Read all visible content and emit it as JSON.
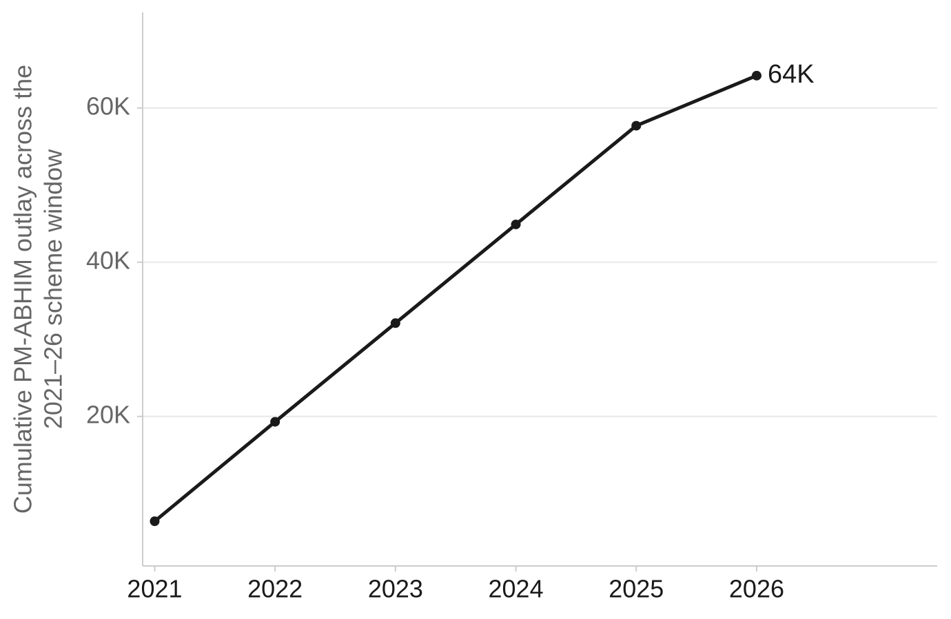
{
  "chart_data": {
    "type": "line",
    "y_label": [
      "Cumulative PM-ABHIM outlay across the",
      "2021–26 scheme window"
    ],
    "x": [
      2021,
      2022,
      2023,
      2024,
      2025,
      2026
    ],
    "series": [
      {
        "color": "#1a1a1a",
        "values": [
          6400,
          19300,
          32100,
          44900,
          57700,
          64200
        ],
        "value_labels": [
          null,
          null,
          null,
          null,
          null,
          "64K"
        ]
      }
    ],
    "xlim": [
      2020.9,
      2027.5
    ],
    "xticks": [
      2021,
      2022,
      2023,
      2024,
      2025,
      2026
    ],
    "ylim": [
      600,
      72400
    ],
    "yticks": [
      {
        "value": 20000,
        "label": "20K"
      },
      {
        "value": 40000,
        "label": "40K"
      },
      {
        "value": 60000,
        "label": "60K"
      }
    ],
    "grid": true
  }
}
